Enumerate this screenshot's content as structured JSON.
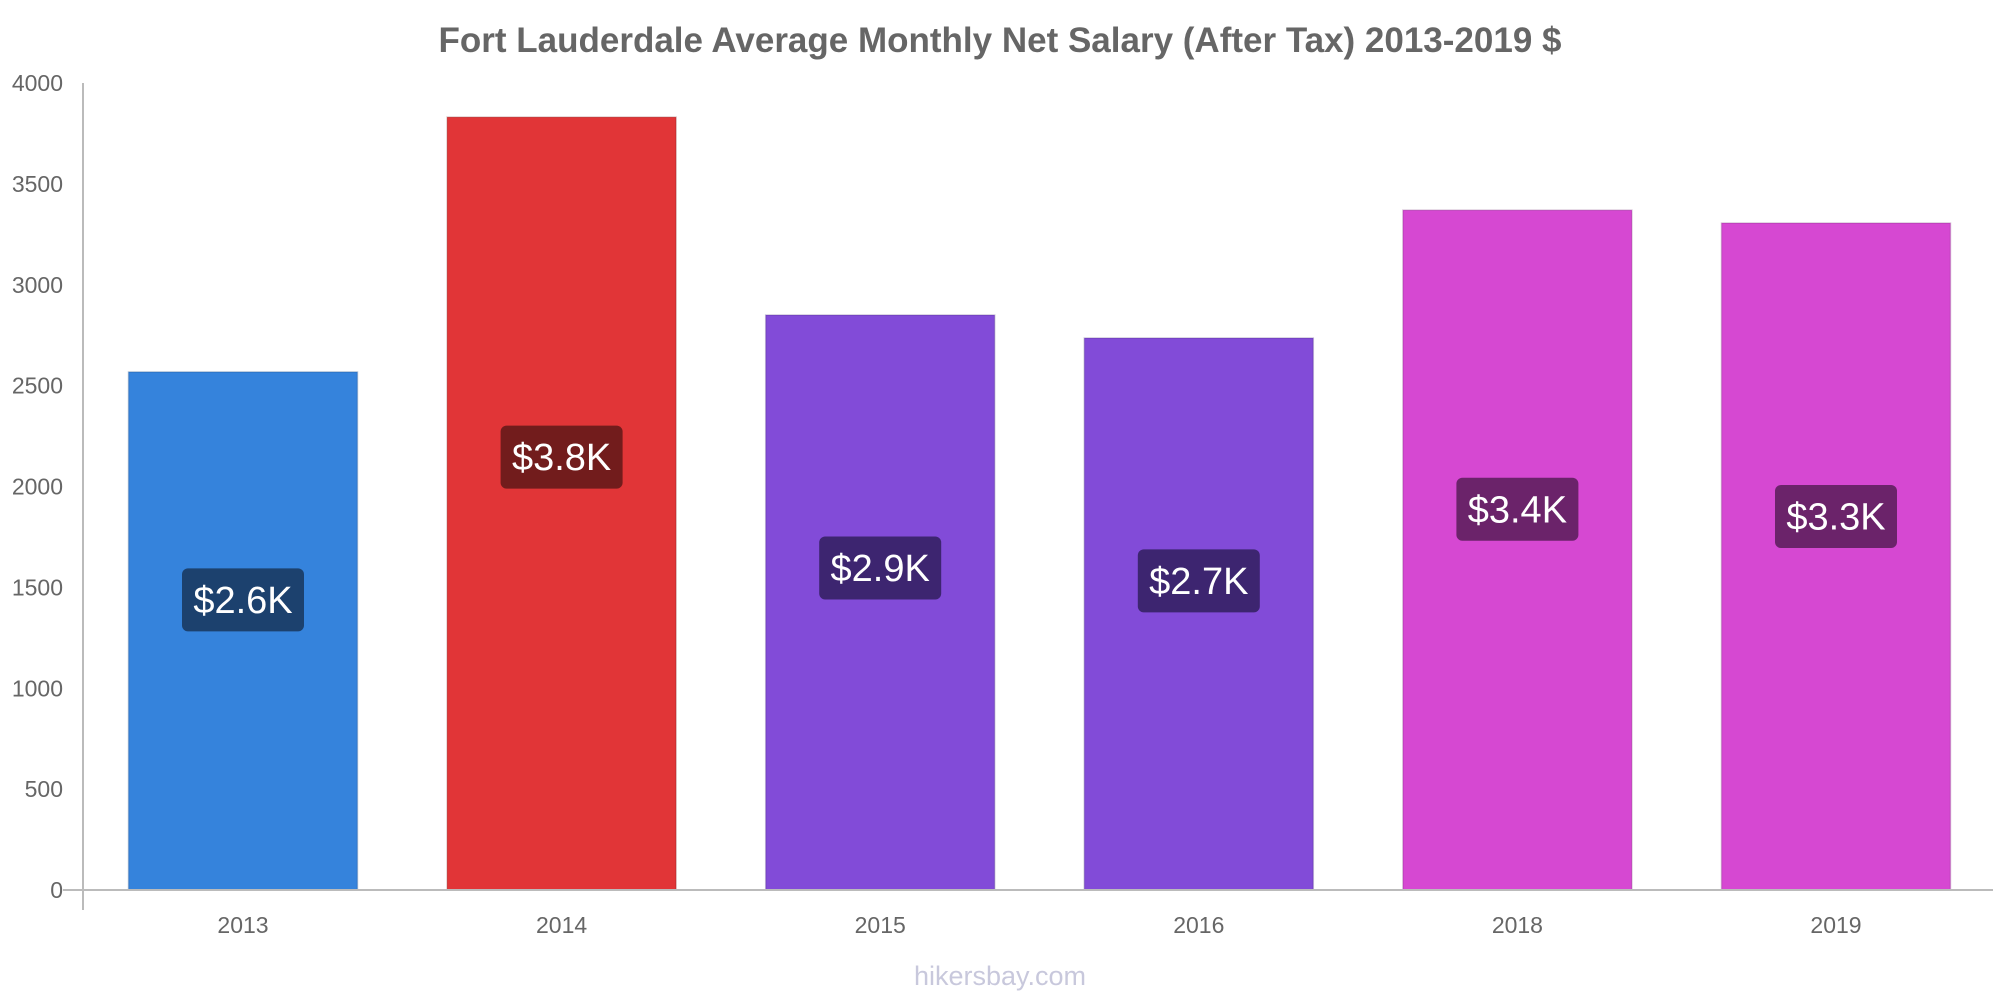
{
  "chart_data": {
    "type": "bar",
    "title": "Fort Lauderdale Average Monthly Net Salary (After Tax) 2013-2019 $",
    "xlabel": "",
    "ylabel": "",
    "categories": [
      "2013",
      "2014",
      "2015",
      "2016",
      "2018",
      "2019"
    ],
    "values": [
      2568,
      3831,
      2850,
      2736,
      3370,
      3306
    ],
    "value_labels": [
      "$2.6K",
      "$3.8K",
      "$2.9K",
      "$2.7K",
      "$3.4K",
      "$3.3K"
    ],
    "bar_colors": [
      "#3583dc",
      "#e13537",
      "#824bd8",
      "#824bd8",
      "#d648d2",
      "#d648d2"
    ],
    "label_box_colors": [
      "#1c416e",
      "#721c1c",
      "#3d2570",
      "#3d2570",
      "#6b236a",
      "#6b236a"
    ],
    "ylim": [
      0,
      4000
    ],
    "yticks": [
      0,
      500,
      1000,
      1500,
      2000,
      2500,
      3000,
      3500,
      4000
    ],
    "grid": false,
    "legend": "none"
  },
  "watermark": "hikersbay.com",
  "colors": {
    "axis": "#bbbbbb",
    "text": "#666666"
  }
}
